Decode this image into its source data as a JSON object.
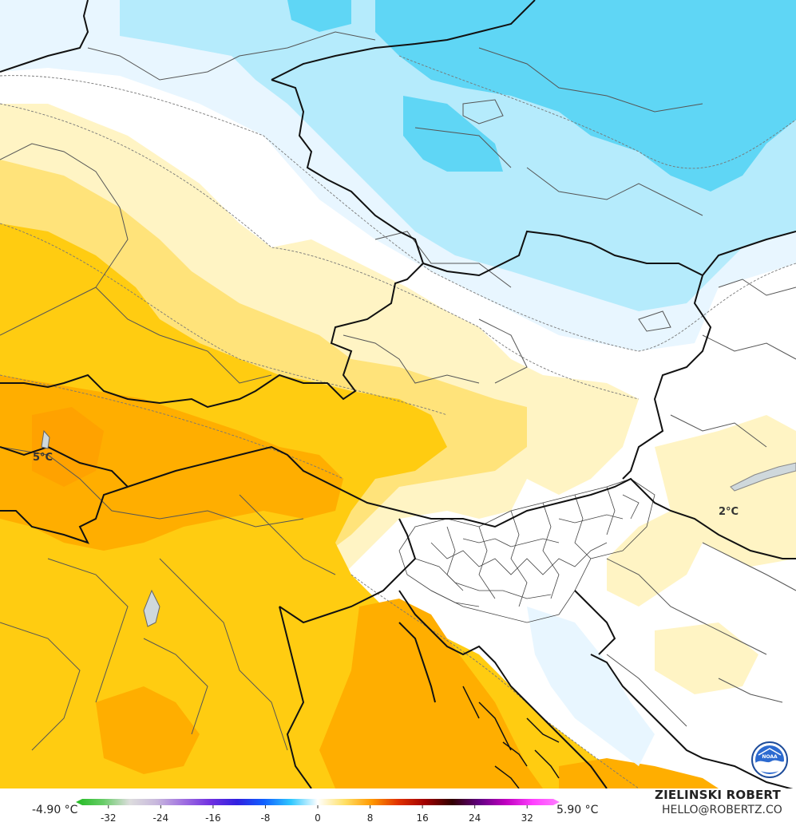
{
  "map": {
    "label_west": "5°C",
    "label_east": "2°C"
  },
  "colorbar": {
    "min_label": "-4.90 °C",
    "max_label": "5.90 °C",
    "ticks": [
      "-32",
      "-24",
      "-16",
      "-8",
      "0",
      "8",
      "16",
      "24",
      "32"
    ],
    "tick_values": [
      -32,
      -24,
      -16,
      -8,
      0,
      8,
      16,
      24,
      32
    ],
    "range": [
      -36,
      36
    ],
    "stops": [
      {
        "v": -36,
        "c": "#22bb22"
      },
      {
        "v": -32,
        "c": "#66cc66"
      },
      {
        "v": -28,
        "c": "#dddddd"
      },
      {
        "v": -24,
        "c": "#c8b8dd"
      },
      {
        "v": -20,
        "c": "#a070e0"
      },
      {
        "v": -16,
        "c": "#7030e0"
      },
      {
        "v": -12,
        "c": "#3020e0"
      },
      {
        "v": -8,
        "c": "#1060ff"
      },
      {
        "v": -4,
        "c": "#30c8ff"
      },
      {
        "v": 0,
        "c": "#ffffff"
      },
      {
        "v": 4,
        "c": "#ffe066"
      },
      {
        "v": 8,
        "c": "#ff9900"
      },
      {
        "v": 12,
        "c": "#e03000"
      },
      {
        "v": 16,
        "c": "#a00000"
      },
      {
        "v": 20,
        "c": "#300000"
      },
      {
        "v": 24,
        "c": "#600080"
      },
      {
        "v": 28,
        "c": "#c000c0"
      },
      {
        "v": 32,
        "c": "#ff40ff"
      },
      {
        "v": 36,
        "c": "#ff80ff"
      }
    ]
  },
  "credit": {
    "name": "ZIELINSKI ROBERT",
    "email": "HELLO@ROBERTZ.CO"
  },
  "logo": {
    "text": "NOAA"
  },
  "colors": {
    "cold_1": "#e8f6ff",
    "cold_2": "#b5ebfc",
    "cold_3": "#5fd6f5",
    "warm_1": "#fff4c4",
    "warm_2": "#ffe37a",
    "warm_3": "#ffcc11",
    "warm_4": "#ffae00"
  }
}
